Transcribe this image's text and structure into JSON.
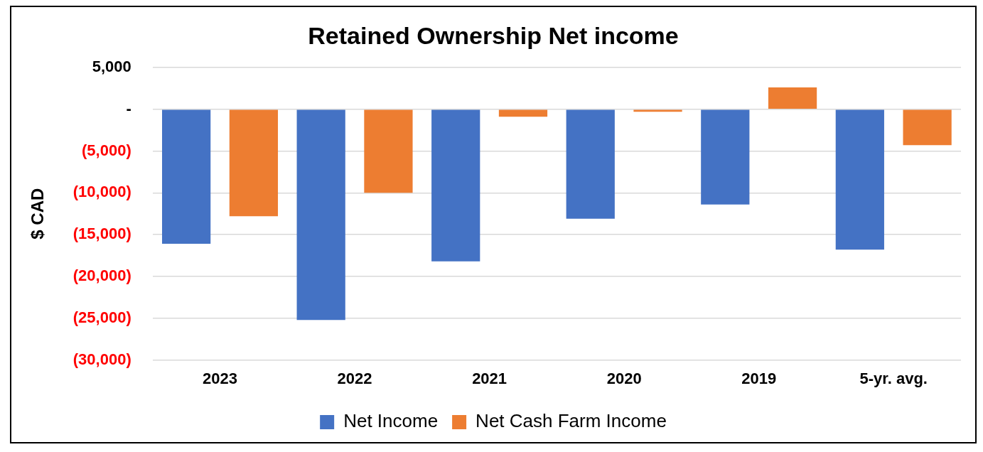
{
  "chart_data": {
    "type": "bar",
    "title": "Retained Ownership Net income",
    "ylabel": "$ CAD",
    "categories": [
      "2023",
      "2022",
      "2021",
      "2020",
      "2019",
      "5-yr. avg."
    ],
    "series": [
      {
        "name": "Net Income",
        "color": "#4472c4",
        "values": [
          -16100,
          -25200,
          -18200,
          -13100,
          -11400,
          -16800
        ]
      },
      {
        "name": "Net Cash Farm Income",
        "color": "#ed7d31",
        "values": [
          -12800,
          -10000,
          -900,
          -300,
          2600,
          -4300
        ]
      }
    ],
    "ylim": [
      -30000,
      5000
    ],
    "yticks": [
      {
        "value": 5000,
        "label": "5,000"
      },
      {
        "value": 0,
        "label": "-"
      },
      {
        "value": -5000,
        "label": "(5,000)"
      },
      {
        "value": -10000,
        "label": "(10,000)"
      },
      {
        "value": -15000,
        "label": "(15,000)"
      },
      {
        "value": -20000,
        "label": "(20,000)"
      },
      {
        "value": -25000,
        "label": "(25,000)"
      },
      {
        "value": -30000,
        "label": "(30,000)"
      }
    ],
    "grid": "y",
    "legend": "bottom"
  }
}
